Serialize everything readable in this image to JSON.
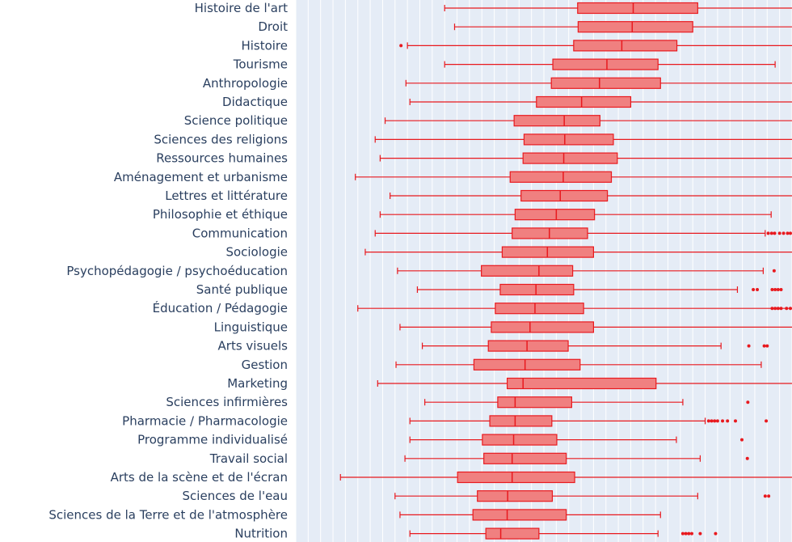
{
  "chart_data": {
    "type": "box",
    "orientation": "horizontal",
    "colors": {
      "plot_bg": "#e5ecf6",
      "grid": "#ffffff",
      "box_fill": "#f08080",
      "box_line": "#e8191e",
      "label": "#2a3f5f"
    },
    "x_range": [
      0,
      100
    ],
    "categories": [
      "Histoire de l'art",
      "Droit",
      "Histoire",
      "Tourisme",
      "Anthropologie",
      "Didactique",
      "Science politique",
      "Sciences des religions",
      "Ressources humaines",
      "Aménagement et urbanisme",
      "Lettres et littérature",
      "Philosophie et éthique",
      "Communication",
      "Sociologie",
      "Psychopédagogie / psychoéducation",
      "Santé publique",
      "Éducation / Pédagogie",
      "Linguistique",
      "Arts visuels",
      "Gestion",
      "Marketing",
      "Sciences infirmières",
      "Pharmacie / Pharmacologie",
      "Programme individualisé",
      "Travail social",
      "Arts de la scène et de l'écran",
      "Sciences de l'eau",
      "Sciences de la Terre et de l'atmosphère",
      "Nutrition"
    ],
    "boxes": [
      {
        "min": 30.0,
        "q1": 56.8,
        "median": 68.0,
        "q3": 81.0,
        "max": 100
      },
      {
        "min": 32.0,
        "q1": 56.9,
        "median": 67.8,
        "q3": 80.0,
        "max": 100
      },
      {
        "min": 22.5,
        "q1": 56.0,
        "median": 65.7,
        "q3": 76.8,
        "max": 100,
        "outliers": [
          21.2
        ]
      },
      {
        "min": 30.0,
        "q1": 51.8,
        "median": 62.7,
        "q3": 73.0,
        "max": 96.6
      },
      {
        "min": 22.2,
        "q1": 51.5,
        "median": 61.2,
        "q3": 73.5,
        "max": 100
      },
      {
        "min": 23.0,
        "q1": 48.5,
        "median": 57.6,
        "q3": 67.5,
        "max": 100
      },
      {
        "min": 18.0,
        "q1": 44.0,
        "median": 54.1,
        "q3": 61.3,
        "max": 100
      },
      {
        "min": 16.0,
        "q1": 46.0,
        "median": 54.2,
        "q3": 64.0,
        "max": 100
      },
      {
        "min": 17.0,
        "q1": 45.8,
        "median": 54.0,
        "q3": 64.8,
        "max": 100
      },
      {
        "min": 12.0,
        "q1": 43.2,
        "median": 53.9,
        "q3": 63.6,
        "max": 100
      },
      {
        "min": 19.0,
        "q1": 45.4,
        "median": 53.3,
        "q3": 62.8,
        "max": 100
      },
      {
        "min": 17.0,
        "q1": 44.2,
        "median": 52.5,
        "q3": 60.2,
        "max": 95.8
      },
      {
        "min": 16.0,
        "q1": 43.6,
        "median": 51.1,
        "q3": 58.8,
        "max": 94.6,
        "outliers": [
          95.2,
          95.9,
          96.5,
          97.5,
          98.3,
          99.1,
          99.8
        ]
      },
      {
        "min": 14.0,
        "q1": 41.6,
        "median": 50.7,
        "q3": 60.0,
        "max": 100
      },
      {
        "min": 20.5,
        "q1": 37.4,
        "median": 49.0,
        "q3": 55.8,
        "max": 94.2,
        "outliers": [
          96.4
        ]
      },
      {
        "min": 24.5,
        "q1": 41.2,
        "median": 48.4,
        "q3": 56.0,
        "max": 89.0,
        "outliers": [
          92.2,
          93.0,
          96.0,
          96.6,
          97.2,
          97.8
        ]
      },
      {
        "min": 12.5,
        "q1": 40.2,
        "median": 48.2,
        "q3": 58.0,
        "max": 100,
        "outliers": [
          96.0,
          96.6,
          97.2,
          97.8,
          98.9,
          100
        ]
      },
      {
        "min": 21.0,
        "q1": 39.4,
        "median": 47.2,
        "q3": 60.0,
        "max": 100
      },
      {
        "min": 25.5,
        "q1": 38.8,
        "median": 46.6,
        "q3": 54.9,
        "max": 85.7,
        "outliers": [
          91.3,
          94.4,
          95.0
        ]
      },
      {
        "min": 20.2,
        "q1": 35.9,
        "median": 46.2,
        "q3": 57.3,
        "max": 93.8
      },
      {
        "min": 16.5,
        "q1": 42.6,
        "median": 45.8,
        "q3": 72.6,
        "max": 100
      },
      {
        "min": 26.0,
        "q1": 40.7,
        "median": 44.2,
        "q3": 55.6,
        "max": 78.0,
        "outliers": [
          91.1
        ]
      },
      {
        "min": 23.0,
        "q1": 39.1,
        "median": 44.2,
        "q3": 51.6,
        "max": 82.5,
        "outliers": [
          83.2,
          83.8,
          84.4,
          85.0,
          86.0,
          87.0,
          88.6,
          94.8
        ]
      },
      {
        "min": 23.0,
        "q1": 37.6,
        "median": 43.9,
        "q3": 52.6,
        "max": 76.7,
        "outliers": [
          89.9
        ]
      },
      {
        "min": 22.0,
        "q1": 37.9,
        "median": 43.6,
        "q3": 54.5,
        "max": 81.5,
        "outliers": [
          91.0
        ]
      },
      {
        "min": 9.0,
        "q1": 32.6,
        "median": 43.6,
        "q3": 56.2,
        "max": 100
      },
      {
        "min": 20.0,
        "q1": 36.6,
        "median": 42.7,
        "q3": 51.7,
        "max": 81.0,
        "outliers": [
          94.6,
          95.3
        ]
      },
      {
        "min": 21.0,
        "q1": 35.7,
        "median": 42.6,
        "q3": 54.5,
        "max": 73.5
      },
      {
        "min": 23.0,
        "q1": 38.3,
        "median": 41.3,
        "q3": 49.0,
        "max": 73.0,
        "outliers": [
          78.0,
          78.6,
          79.2,
          79.8,
          81.5,
          84.6
        ]
      }
    ]
  }
}
